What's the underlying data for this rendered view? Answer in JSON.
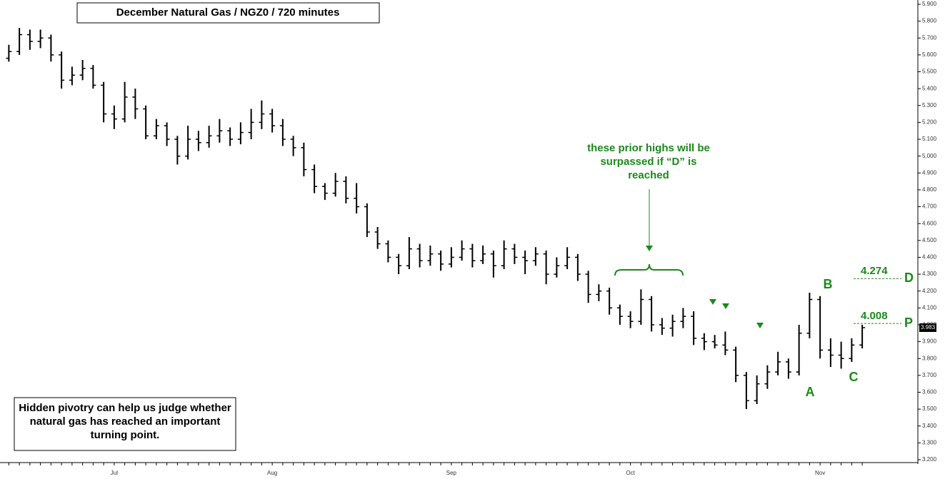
{
  "chart_data": {
    "type": "ohlc",
    "title": "December Natural Gas  /  NGZ0  /  720 minutes",
    "note": "Hidden pivotry can help us judge whether natural gas has reached an important turning point.",
    "callout": "these prior highs will be surpassed if “D” is reached",
    "pivot_labels": [
      "A",
      "B",
      "C"
    ],
    "color": "#000000",
    "level_color": "#1a8a1a",
    "levels": [
      {
        "value": 4.274,
        "name": "D"
      },
      {
        "value": 4.008,
        "name": "P"
      }
    ],
    "ylim": [
      3.2,
      5.9
    ],
    "yticks": [
      {
        "value": 3.2,
        "label": "3.200"
      },
      {
        "value": 3.3,
        "label": "3.300"
      },
      {
        "value": 3.4,
        "label": "3.400"
      },
      {
        "value": 3.5,
        "label": "3.500"
      },
      {
        "value": 3.6,
        "label": "3.600"
      },
      {
        "value": 3.7,
        "label": "3.700"
      },
      {
        "value": 3.8,
        "label": "3.800"
      },
      {
        "value": 3.9,
        "label": "3.900"
      },
      {
        "value": 4.0,
        "label": "4.000"
      },
      {
        "value": 4.1,
        "label": "4.100"
      },
      {
        "value": 4.2,
        "label": "4.200"
      },
      {
        "value": 4.3,
        "label": "4.300"
      },
      {
        "value": 4.4,
        "label": "4.400"
      },
      {
        "value": 4.5,
        "label": "4.500"
      },
      {
        "value": 4.6,
        "label": "4.600"
      },
      {
        "value": 4.7,
        "label": "4.700"
      },
      {
        "value": 4.8,
        "label": "4.800"
      },
      {
        "value": 4.9,
        "label": "4.900"
      },
      {
        "value": 5.0,
        "label": "5.000"
      },
      {
        "value": 5.1,
        "label": "5.100"
      },
      {
        "value": 5.2,
        "label": "5.200"
      },
      {
        "value": 5.3,
        "label": "5.300"
      },
      {
        "value": 5.4,
        "label": "5.400"
      },
      {
        "value": 5.5,
        "label": "5.500"
      },
      {
        "value": 5.6,
        "label": "5.600"
      },
      {
        "value": 5.7,
        "label": "5.700"
      },
      {
        "value": 5.8,
        "label": "5.800"
      },
      {
        "value": 5.9,
        "label": "5.900"
      }
    ],
    "categories": [
      null,
      null,
      null,
      null,
      null,
      null,
      null,
      null,
      null,
      null,
      "Jul",
      null,
      null,
      null,
      null,
      null,
      null,
      null,
      null,
      null,
      null,
      null,
      null,
      null,
      null,
      "Aug",
      null,
      null,
      null,
      null,
      null,
      null,
      null,
      null,
      null,
      null,
      null,
      null,
      null,
      null,
      null,
      null,
      "Sep",
      null,
      null,
      null,
      null,
      null,
      null,
      null,
      null,
      null,
      null,
      null,
      null,
      null,
      null,
      null,
      null,
      "Oct",
      null,
      null,
      null,
      null,
      null,
      null,
      null,
      null,
      null,
      null,
      null,
      null,
      null,
      null,
      null,
      null,
      null,
      "Nov",
      null,
      null,
      null,
      null
    ],
    "ohlc": [
      [
        5.58,
        5.66,
        5.56,
        5.62
      ],
      [
        5.62,
        5.76,
        5.6,
        5.72
      ],
      [
        5.72,
        5.75,
        5.63,
        5.68
      ],
      [
        5.68,
        5.75,
        5.64,
        5.7
      ],
      [
        5.7,
        5.72,
        5.56,
        5.6
      ],
      [
        5.6,
        5.62,
        5.4,
        5.45
      ],
      [
        5.45,
        5.53,
        5.42,
        5.48
      ],
      [
        5.48,
        5.57,
        5.45,
        5.52
      ],
      [
        5.52,
        5.54,
        5.4,
        5.42
      ],
      [
        5.42,
        5.44,
        5.2,
        5.25
      ],
      [
        5.25,
        5.3,
        5.16,
        5.22
      ],
      [
        5.22,
        5.44,
        5.2,
        5.35
      ],
      [
        5.35,
        5.4,
        5.22,
        5.28
      ],
      [
        5.28,
        5.3,
        5.1,
        5.12
      ],
      [
        5.12,
        5.22,
        5.1,
        5.18
      ],
      [
        5.18,
        5.2,
        5.06,
        5.1
      ],
      [
        5.1,
        5.12,
        4.95,
        5.0
      ],
      [
        5.0,
        5.18,
        4.98,
        5.1
      ],
      [
        5.1,
        5.15,
        5.03,
        5.08
      ],
      [
        5.08,
        5.18,
        5.05,
        5.12
      ],
      [
        5.12,
        5.22,
        5.08,
        5.15
      ],
      [
        5.15,
        5.17,
        5.06,
        5.1
      ],
      [
        5.1,
        5.2,
        5.07,
        5.14
      ],
      [
        5.14,
        5.28,
        5.1,
        5.2
      ],
      [
        5.2,
        5.33,
        5.16,
        5.25
      ],
      [
        5.25,
        5.28,
        5.14,
        5.18
      ],
      [
        5.18,
        5.22,
        5.06,
        5.1
      ],
      [
        5.1,
        5.12,
        5.0,
        5.05
      ],
      [
        5.05,
        5.08,
        4.88,
        4.92
      ],
      [
        4.92,
        4.95,
        4.78,
        4.82
      ],
      [
        4.82,
        4.84,
        4.74,
        4.78
      ],
      [
        4.78,
        4.9,
        4.76,
        4.85
      ],
      [
        4.85,
        4.88,
        4.72,
        4.75
      ],
      [
        4.75,
        4.84,
        4.66,
        4.7
      ],
      [
        4.7,
        4.72,
        4.52,
        4.55
      ],
      [
        4.55,
        4.58,
        4.45,
        4.48
      ],
      [
        4.48,
        4.5,
        4.37,
        4.4
      ],
      [
        4.4,
        4.42,
        4.3,
        4.35
      ],
      [
        4.35,
        4.52,
        4.33,
        4.45
      ],
      [
        4.45,
        4.48,
        4.34,
        4.38
      ],
      [
        4.38,
        4.47,
        4.35,
        4.42
      ],
      [
        4.42,
        4.44,
        4.32,
        4.36
      ],
      [
        4.36,
        4.46,
        4.34,
        4.4
      ],
      [
        4.4,
        4.5,
        4.38,
        4.45
      ],
      [
        4.45,
        4.48,
        4.34,
        4.38
      ],
      [
        4.38,
        4.47,
        4.36,
        4.42
      ],
      [
        4.42,
        4.44,
        4.28,
        4.35
      ],
      [
        4.35,
        4.5,
        4.33,
        4.45
      ],
      [
        4.45,
        4.48,
        4.36,
        4.4
      ],
      [
        4.4,
        4.44,
        4.3,
        4.38
      ],
      [
        4.38,
        4.46,
        4.35,
        4.42
      ],
      [
        4.42,
        4.44,
        4.24,
        4.3
      ],
      [
        4.3,
        4.4,
        4.28,
        4.35
      ],
      [
        4.35,
        4.46,
        4.33,
        4.4
      ],
      [
        4.4,
        4.42,
        4.26,
        4.3
      ],
      [
        4.3,
        4.32,
        4.13,
        4.18
      ],
      [
        4.18,
        4.24,
        4.14,
        4.2
      ],
      [
        4.2,
        4.22,
        4.06,
        4.1
      ],
      [
        4.1,
        4.12,
        4.0,
        4.05
      ],
      [
        4.05,
        4.08,
        3.98,
        4.02
      ],
      [
        4.02,
        4.21,
        4.0,
        4.15
      ],
      [
        4.15,
        4.17,
        3.96,
        4.0
      ],
      [
        4.0,
        4.04,
        3.94,
        3.98
      ],
      [
        3.98,
        4.06,
        3.93,
        4.02
      ],
      [
        4.02,
        4.1,
        3.98,
        4.05
      ],
      [
        4.05,
        4.08,
        3.88,
        3.92
      ],
      [
        3.92,
        3.95,
        3.85,
        3.9
      ],
      [
        3.9,
        3.94,
        3.86,
        3.88
      ],
      [
        3.88,
        3.96,
        3.82,
        3.85
      ],
      [
        3.85,
        3.87,
        3.66,
        3.7
      ],
      [
        3.7,
        3.72,
        3.5,
        3.55
      ],
      [
        3.55,
        3.7,
        3.53,
        3.65
      ],
      [
        3.65,
        3.76,
        3.62,
        3.72
      ],
      [
        3.72,
        3.84,
        3.7,
        3.78
      ],
      [
        3.78,
        3.8,
        3.68,
        3.72
      ],
      [
        3.72,
        4.0,
        3.7,
        3.95
      ],
      [
        3.95,
        4.19,
        3.92,
        4.15
      ],
      [
        4.15,
        4.17,
        3.8,
        3.85
      ],
      [
        3.85,
        3.92,
        3.75,
        3.82
      ],
      [
        3.82,
        3.9,
        3.74,
        3.8
      ],
      [
        3.8,
        3.92,
        3.78,
        3.88
      ],
      [
        3.88,
        4.0,
        3.86,
        3.983
      ]
    ]
  }
}
